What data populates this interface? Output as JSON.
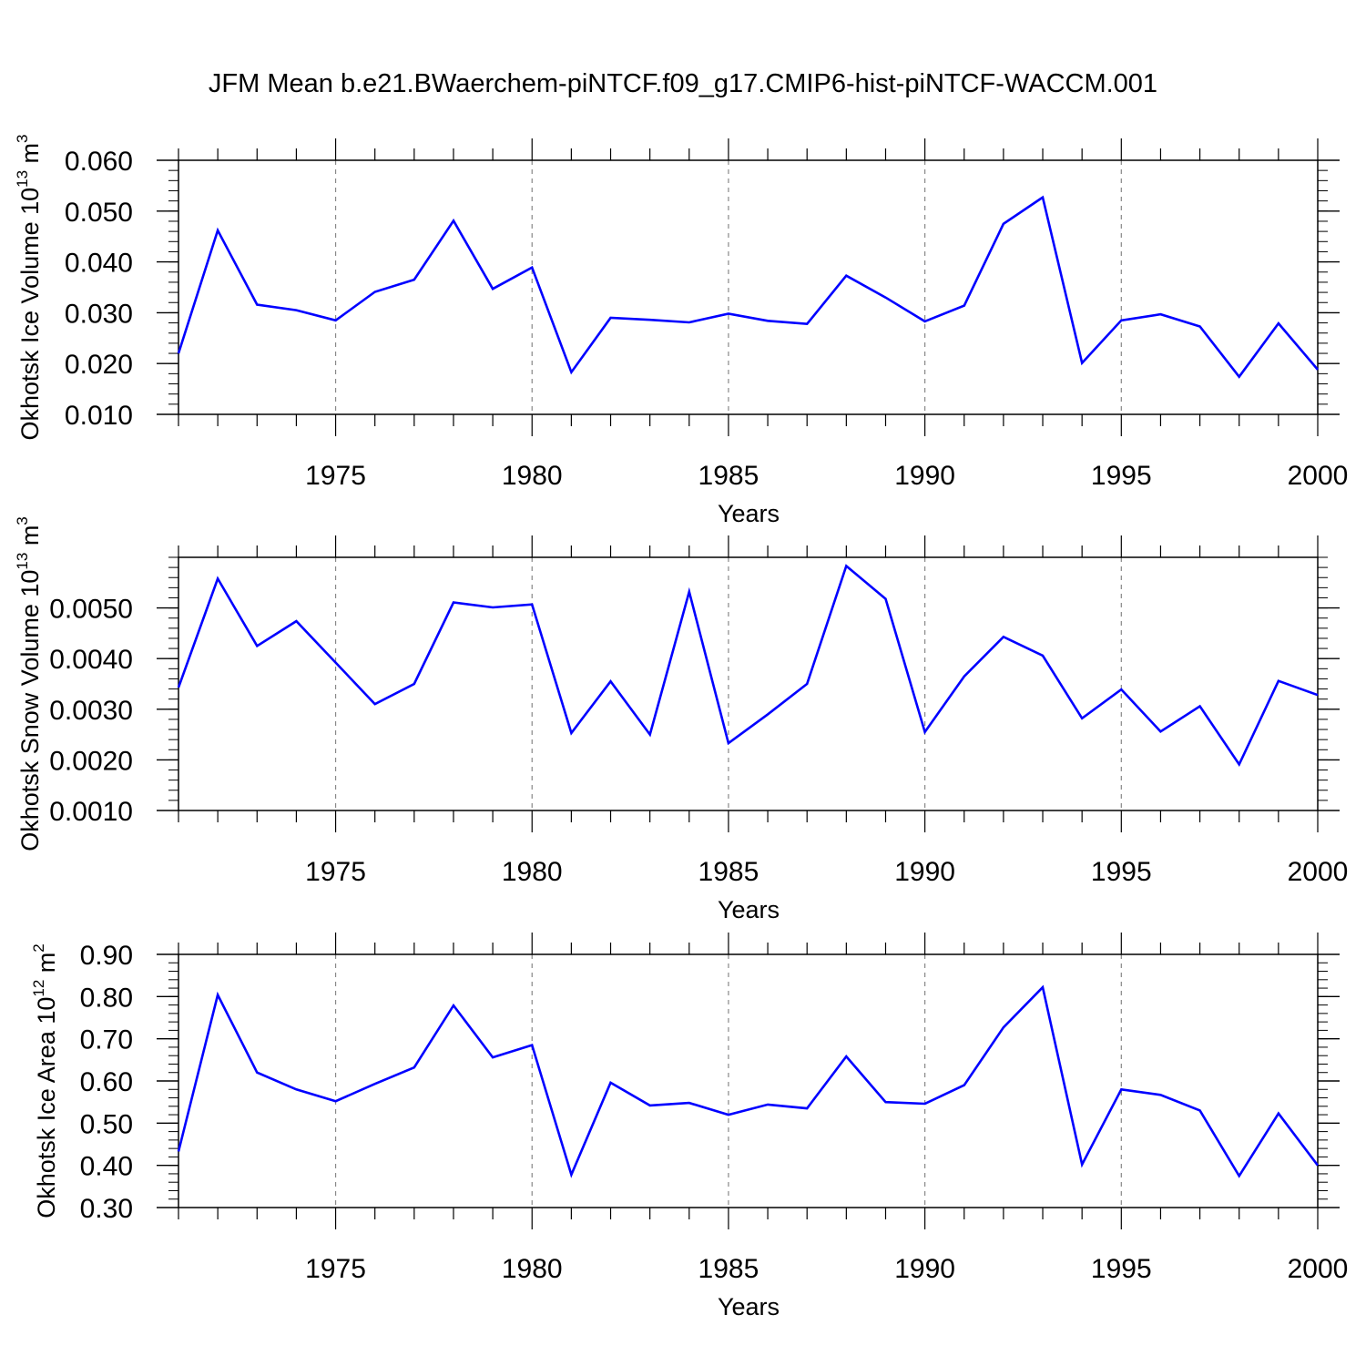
{
  "title": "JFM Mean b.e21.BWaerchem-piNTCF.f09_g17.CMIP6-hist-piNTCF-WACCM.001",
  "line_color": "#0000ff",
  "chart_data": [
    {
      "type": "line",
      "ylabel": "Okhotsk Ice Volume 10",
      "ylabel_exp": "13",
      "ylabel_unit": "m",
      "ylabel_unit_exp": "3",
      "xlabel": "Years",
      "xlim": [
        1971,
        2000
      ],
      "ylim": [
        0.01,
        0.06
      ],
      "yticks": [
        0.01,
        0.02,
        0.03,
        0.04,
        0.05,
        0.06
      ],
      "ytick_labels": [
        "0.010",
        "0.020",
        "0.030",
        "0.040",
        "0.050",
        "0.060"
      ],
      "xticks": [
        1975,
        1980,
        1985,
        1990,
        1995,
        2000
      ],
      "xtick_labels": [
        "1975",
        "1980",
        "1985",
        "1990",
        "1995",
        "2000"
      ],
      "grid_x": true,
      "x": [
        1971,
        1972,
        1973,
        1974,
        1975,
        1976,
        1977,
        1978,
        1979,
        1980,
        1981,
        1982,
        1983,
        1984,
        1985,
        1986,
        1987,
        1988,
        1989,
        1990,
        1991,
        1992,
        1993,
        1994,
        1995,
        1996,
        1997,
        1998,
        1999,
        2000
      ],
      "values": [
        0.022,
        0.0462,
        0.0316,
        0.0305,
        0.0285,
        0.0341,
        0.0365,
        0.0481,
        0.0347,
        0.0389,
        0.0183,
        0.029,
        0.0286,
        0.0281,
        0.0298,
        0.0284,
        0.0278,
        0.0373,
        0.033,
        0.0283,
        0.0314,
        0.0475,
        0.0527,
        0.0201,
        0.0285,
        0.0297,
        0.0273,
        0.0174,
        0.0279,
        0.0188
      ]
    },
    {
      "type": "line",
      "ylabel": "Okhotsk Snow Volume 10",
      "ylabel_exp": "13",
      "ylabel_unit": "m",
      "ylabel_unit_exp": "3",
      "xlabel": "Years",
      "xlim": [
        1971,
        2000
      ],
      "ylim": [
        0.001,
        0.006
      ],
      "yticks": [
        0.001,
        0.002,
        0.003,
        0.004,
        0.005
      ],
      "ytick_labels": [
        "0.0010",
        "0.0020",
        "0.0030",
        "0.0040",
        "0.0050"
      ],
      "xticks": [
        1975,
        1980,
        1985,
        1990,
        1995,
        2000
      ],
      "xtick_labels": [
        "1975",
        "1980",
        "1985",
        "1990",
        "1995",
        "2000"
      ],
      "grid_x": true,
      "x": [
        1971,
        1972,
        1973,
        1974,
        1975,
        1976,
        1977,
        1978,
        1979,
        1980,
        1981,
        1982,
        1983,
        1984,
        1985,
        1986,
        1987,
        1988,
        1989,
        1990,
        1991,
        1992,
        1993,
        1994,
        1995,
        1996,
        1997,
        1998,
        1999,
        2000
      ],
      "values": [
        0.00343,
        0.00558,
        0.00425,
        0.00474,
        0.00392,
        0.0031,
        0.0035,
        0.00511,
        0.00501,
        0.00507,
        0.00253,
        0.00355,
        0.0025,
        0.00532,
        0.00233,
        0.0029,
        0.0035,
        0.00583,
        0.00518,
        0.00255,
        0.00365,
        0.00443,
        0.00406,
        0.00282,
        0.00339,
        0.00256,
        0.00306,
        0.00191,
        0.00356,
        0.00328
      ]
    },
    {
      "type": "line",
      "ylabel": "Okhotsk Ice Area 10",
      "ylabel_exp": "12",
      "ylabel_unit": "m",
      "ylabel_unit_exp": "2",
      "xlabel": "Years",
      "xlim": [
        1971,
        2000
      ],
      "ylim": [
        0.3,
        0.9
      ],
      "yticks": [
        0.3,
        0.4,
        0.5,
        0.6,
        0.7,
        0.8,
        0.9
      ],
      "ytick_labels": [
        "0.30",
        "0.40",
        "0.50",
        "0.60",
        "0.70",
        "0.80",
        "0.90"
      ],
      "xticks": [
        1975,
        1980,
        1985,
        1990,
        1995,
        2000
      ],
      "xtick_labels": [
        "1975",
        "1980",
        "1985",
        "1990",
        "1995",
        "2000"
      ],
      "grid_x": true,
      "x": [
        1971,
        1972,
        1973,
        1974,
        1975,
        1976,
        1977,
        1978,
        1979,
        1980,
        1981,
        1982,
        1983,
        1984,
        1985,
        1986,
        1987,
        1988,
        1989,
        1990,
        1991,
        1992,
        1993,
        1994,
        1995,
        1996,
        1997,
        1998,
        1999,
        2000
      ],
      "values": [
        0.433,
        0.804,
        0.62,
        0.58,
        0.552,
        0.593,
        0.632,
        0.779,
        0.656,
        0.685,
        0.378,
        0.596,
        0.542,
        0.548,
        0.52,
        0.544,
        0.535,
        0.658,
        0.55,
        0.546,
        0.59,
        0.727,
        0.822,
        0.402,
        0.58,
        0.567,
        0.53,
        0.375,
        0.523,
        0.4
      ]
    }
  ]
}
